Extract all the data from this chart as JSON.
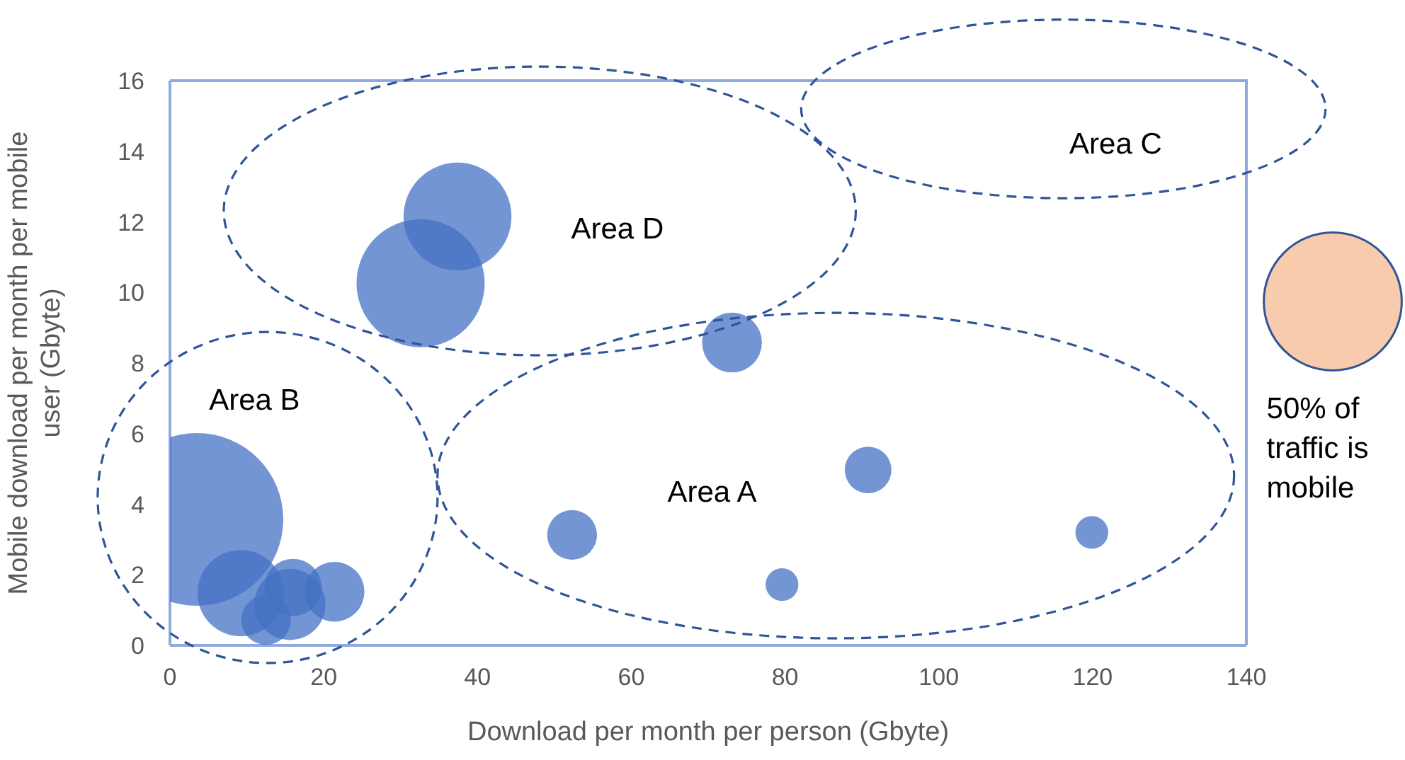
{
  "chart_data": {
    "type": "bubble",
    "xlabel": "Download per month per person (Gbyte)",
    "ylabel": "Mobile download per month per mobile user (Gbyte)",
    "x": [
      3.5,
      9.2,
      16,
      15.6,
      12.5,
      21.4,
      32.6,
      37.4,
      73.1,
      90.8,
      52.3,
      79.6,
      119.9
    ],
    "series": [
      {
        "color": "#4472c4",
        "values": [
          3.57,
          1.48,
          1.64,
          1.16,
          0.72,
          1.52,
          10.26,
          12.15,
          8.58,
          4.97,
          3.13,
          1.72,
          3.2
        ],
        "sizes": [
          1,
          0.25,
          0.11,
          0.17,
          0.083,
          0.12,
          0.55,
          0.39,
          0.12,
          0.073,
          0.083,
          0.036,
          0.036
        ]
      }
    ],
    "xlim": [
      0,
      140
    ],
    "xticks": [
      0,
      20,
      40,
      60,
      80,
      100,
      120,
      140
    ],
    "ylim": [
      0,
      16
    ],
    "yticks": [
      0,
      2,
      4,
      6,
      8,
      10,
      12,
      14,
      16
    ],
    "annotations": [
      "Area D",
      "Area C",
      "Area B",
      "Area A",
      "50% of traffic is mobile"
    ]
  }
}
